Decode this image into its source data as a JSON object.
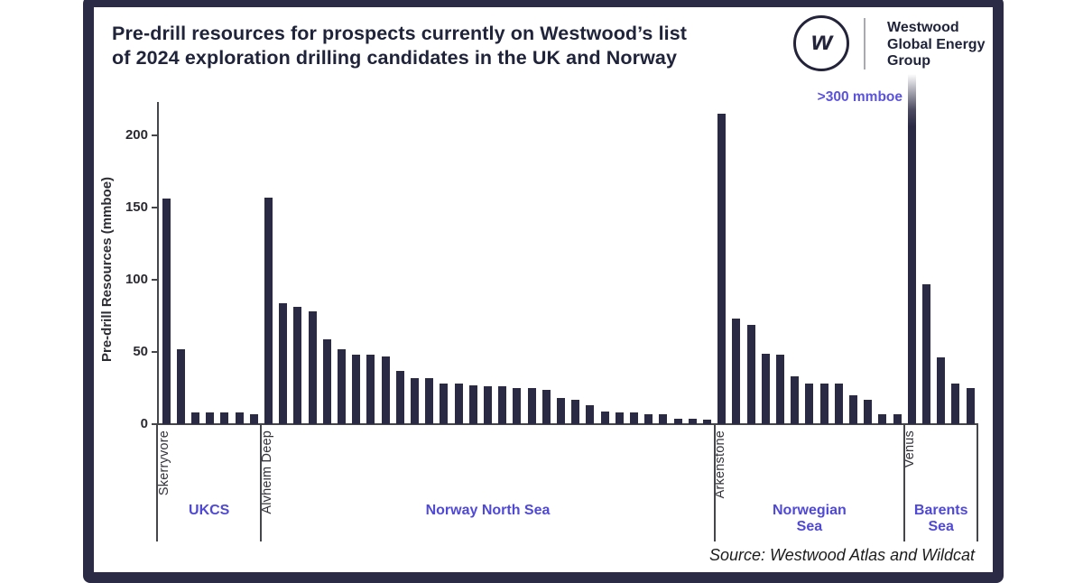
{
  "header": {
    "title": {
      "line1": "Pre-drill resources for prospects currently on Westwood’s list",
      "line2": "of 2024 exploration drilling candidates in the UK and Norway"
    },
    "logo": {
      "monogram": "w",
      "org_lines": [
        "Westwood",
        "Global Energy",
        "Group"
      ]
    }
  },
  "source": {
    "text": "Source: Westwood Atlas and Wildcat"
  },
  "chart_data": {
    "type": "bar",
    "title": "Pre-drill resources for prospects currently on Westwood’s list of 2024 exploration drilling candidates in the UK and Norway",
    "ylabel": "Pre-drill Resources (mmboe)",
    "yticks": [
      0,
      50,
      100,
      150,
      200
    ],
    "ylim": [
      0,
      222
    ],
    "grid": false,
    "legend": "none",
    "annotation": ">300 mmboe",
    "bar_color": "#2b2a45",
    "accent_color": "#4f49d6",
    "groups": [
      {
        "region": "UKCS",
        "region_lines": [
          "UKCS"
        ],
        "labeled_prospect": "Skerryvore",
        "values": [
          156,
          52,
          8,
          8,
          8,
          8,
          7
        ]
      },
      {
        "region": "Norway North Sea",
        "region_lines": [
          "Norway North Sea"
        ],
        "labeled_prospect": "Alvheim Deep",
        "values": [
          157,
          84,
          81,
          78,
          59,
          52,
          48,
          48,
          47,
          37,
          32,
          32,
          28,
          28,
          27,
          26,
          26,
          25,
          25,
          24,
          18,
          17,
          13,
          9,
          8,
          8,
          7,
          7,
          4,
          4,
          3
        ]
      },
      {
        "region": "Norwegian Sea",
        "region_lines": [
          "Norwegian",
          "Sea"
        ],
        "labeled_prospect": "Arkenstone",
        "values": [
          215,
          73,
          69,
          49,
          48,
          33,
          28,
          28,
          28,
          20,
          17,
          7,
          7
        ]
      },
      {
        "region": "Barents Sea",
        "region_lines": [
          "Barents",
          "Sea"
        ],
        "labeled_prospect": "Venus",
        "values": [
          320,
          97,
          46,
          28,
          25
        ],
        "offscale_note": "First bar (Venus) exceeds axis: >300 mmboe, drawn with fade-out top"
      }
    ]
  }
}
